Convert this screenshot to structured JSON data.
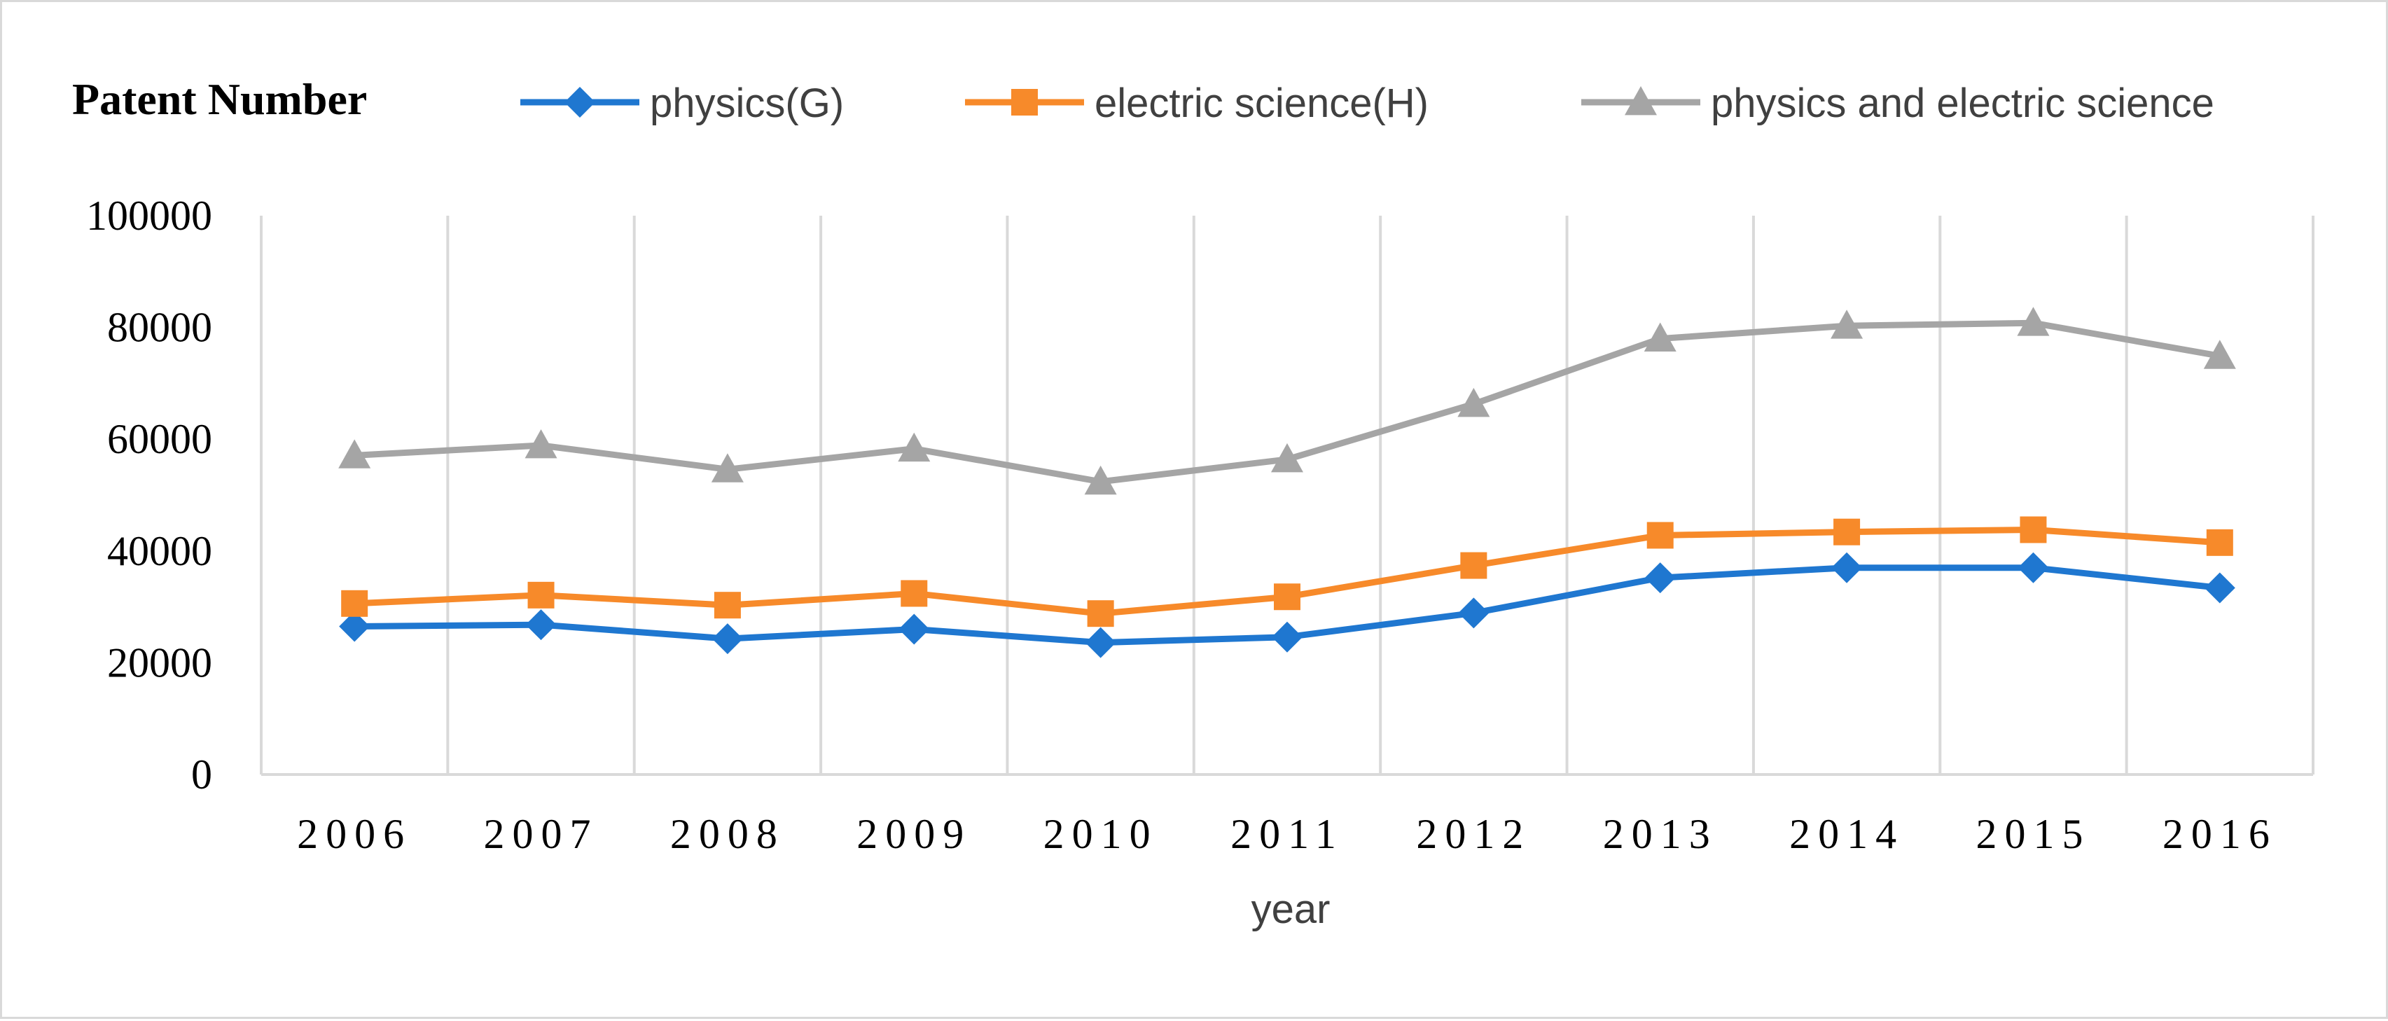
{
  "chart_data": {
    "type": "line",
    "title": "Patent Number",
    "xlabel": "year",
    "ylabel": "",
    "categories": [
      "2006",
      "2007",
      "2008",
      "2009",
      "2010",
      "2011",
      "2012",
      "2013",
      "2014",
      "2015",
      "2016"
    ],
    "ylim": [
      0,
      100000
    ],
    "yticks": [
      "0",
      "20000",
      "40000",
      "60000",
      "80000",
      "100000"
    ],
    "grid": "vertical",
    "legend_position": "top",
    "series": [
      {
        "name": "physics(G)",
        "color": "#1f77d0",
        "marker": "diamond",
        "values": [
          26500,
          26800,
          24300,
          26000,
          23600,
          24600,
          28900,
          35200,
          37000,
          37000,
          33400
        ]
      },
      {
        "name": "electric science(H)",
        "color": "#f78a2a",
        "marker": "square",
        "values": [
          30600,
          32100,
          30300,
          32400,
          28800,
          31800,
          37400,
          42800,
          43400,
          43800,
          41500
        ]
      },
      {
        "name": "physics and electric science",
        "color": "#a5a5a5",
        "marker": "triangle",
        "values": [
          57100,
          58900,
          54600,
          58300,
          52400,
          56400,
          66300,
          78000,
          80300,
          80800,
          74900
        ]
      }
    ]
  }
}
